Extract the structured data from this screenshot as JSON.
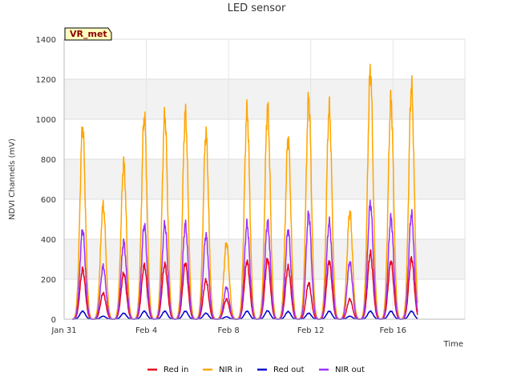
{
  "chart_data": {
    "type": "line",
    "title": "LED sensor",
    "xlabel": "Time",
    "ylabel": "NDVI Channels (mV)",
    "badge": "VR_met",
    "xlim": [
      0,
      19.5
    ],
    "ylim": [
      0,
      1400
    ],
    "yticks": [
      0,
      200,
      400,
      600,
      800,
      1000,
      1200,
      1400
    ],
    "xticks": [
      {
        "value": 0,
        "label": "Jan 31"
      },
      {
        "value": 4,
        "label": "Feb 4"
      },
      {
        "value": 8,
        "label": "Feb 8"
      },
      {
        "value": 12,
        "label": "Feb 12"
      },
      {
        "value": 16,
        "label": "Feb 16"
      }
    ],
    "grid": true,
    "legend_position": "bottom",
    "day_peak_centers": [
      0.9,
      1.9,
      2.9,
      3.9,
      4.9,
      5.9,
      6.9,
      7.9,
      8.9,
      9.9,
      10.9,
      11.9,
      12.9,
      13.9,
      14.9,
      15.9,
      16.9
    ],
    "series": [
      {
        "name": "Red in",
        "color": "#e8001c",
        "daily_peaks": [
          250,
          130,
          230,
          270,
          275,
          280,
          195,
          100,
          290,
          300,
          260,
          180,
          290,
          100,
          330,
          290,
          305
        ]
      },
      {
        "name": "NIR in",
        "color": "#ffa500",
        "daily_peaks": [
          960,
          570,
          780,
          1015,
          1020,
          1030,
          930,
          380,
          1040,
          1055,
          905,
          1100,
          1055,
          535,
          1245,
          1095,
          1165
        ]
      },
      {
        "name": "Red out",
        "color": "#0000cd",
        "daily_peaks": [
          40,
          15,
          30,
          40,
          40,
          40,
          30,
          12,
          40,
          42,
          38,
          30,
          40,
          15,
          40,
          40,
          40
        ]
      },
      {
        "name": "NIR out",
        "color": "#9b30ff",
        "daily_peaks": [
          445,
          265,
          385,
          470,
          475,
          475,
          420,
          160,
          475,
          485,
          445,
          525,
          485,
          285,
          580,
          505,
          525
        ]
      }
    ]
  }
}
